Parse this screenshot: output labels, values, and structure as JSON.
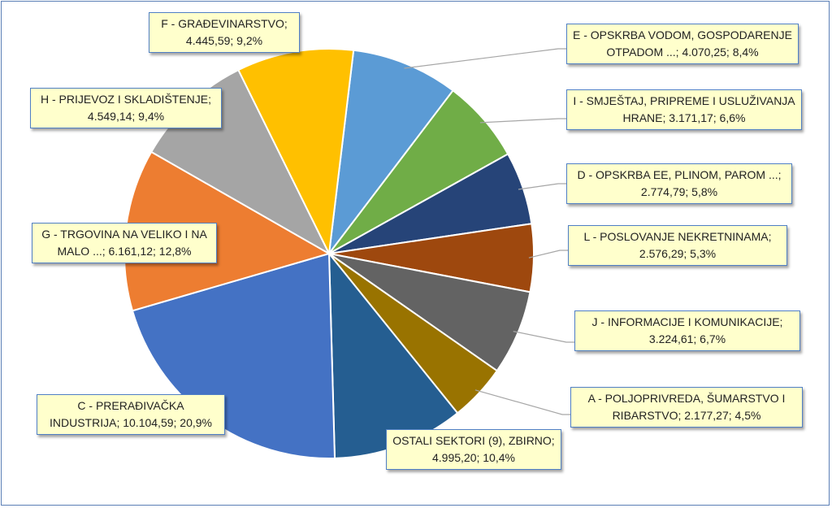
{
  "chart_data": {
    "type": "pie",
    "title": "",
    "slices": [
      {
        "name": "E - OPSKRBA VODOM, GOSPODARENJE OTPADOM ...",
        "value": 4070.25,
        "percent": 8.4,
        "color": "#5b9bd5",
        "label": "E - OPSKRBA VODOM, GOSPODARENJE OTPADOM ...; 4.070,25; 8,4%"
      },
      {
        "name": "I - SMJEŠTAJ, PRIPREME I USLUŽIVANJA HRANE",
        "value": 3171.17,
        "percent": 6.6,
        "color": "#70ad47",
        "label": "I - SMJEŠTAJ, PRIPREME I USLUŽIVANJA HRANE; 3.171,17; 6,6%"
      },
      {
        "name": "D - OPSKRBA EE, PLINOM, PAROM ...",
        "value": 2774.79,
        "percent": 5.8,
        "color": "#264478",
        "label": "D - OPSKRBA EE, PLINOM, PAROM ...; 2.774,79; 5,8%"
      },
      {
        "name": "L - POSLOVANJE NEKRETNINAMA",
        "value": 2576.29,
        "percent": 5.3,
        "color": "#9e480e",
        "label": "L - POSLOVANJE NEKRETNINAMA; 2.576,29; 5,3%"
      },
      {
        "name": "J - INFORMACIJE I KOMUNIKACIJE",
        "value": 3224.61,
        "percent": 6.7,
        "color": "#636363",
        "label": "J - INFORMACIJE I KOMUNIKACIJE; 3.224,61; 6,7%"
      },
      {
        "name": "A - POLJOPRIVREDA, ŠUMARSTVO I RIBARSTVO",
        "value": 2177.27,
        "percent": 4.5,
        "color": "#997300",
        "label": "A - POLJOPRIVREDA, ŠUMARSTVO I RIBARSTVO; 2.177,27; 4,5%"
      },
      {
        "name": "OSTALI SEKTORI (9), ZBIRNO",
        "value": 4995.2,
        "percent": 10.4,
        "color": "#255e91",
        "label": "OSTALI SEKTORI (9), ZBIRNO; 4.995,20; 10,4%"
      },
      {
        "name": "C - PRERAĐIVAČKA INDUSTRIJA",
        "value": 10104.59,
        "percent": 20.9,
        "color": "#4472c4",
        "label": "C - PRERAĐIVAČKA INDUSTRIJA; 10.104,59; 20,9%"
      },
      {
        "name": "G - TRGOVINA NA VELIKO I NA MALO ...",
        "value": 6161.12,
        "percent": 12.8,
        "color": "#ed7d31",
        "label": "G - TRGOVINA NA VELIKO I NA MALO ...; 6.161,12; 12,8%"
      },
      {
        "name": "H - PRIJEVOZ I SKLADIŠTENJE",
        "value": 4549.14,
        "percent": 9.4,
        "color": "#a5a5a5",
        "label": "H - PRIJEVOZ I SKLADIŠTENJE; 4.549,14; 9,4%"
      },
      {
        "name": "F - GRAĐEVINARSTVO",
        "value": 4445.59,
        "percent": 9.2,
        "color": "#ffc000",
        "label": "F - GRAĐEVINARSTVO; 4.445,59; 9,2%"
      }
    ],
    "data_labels": {
      "E": {
        "line1": "E - OPSKRBA VODOM, GOSPODARENJE",
        "line2": "OTPADOM ...; 4.070,25; 8,4%"
      },
      "I": {
        "line1": "I - SMJEŠTAJ, PRIPREME I USLUŽIVANJA",
        "line2": "HRANE; 3.171,17; 6,6%"
      },
      "D": {
        "line1": "D - OPSKRBA EE, PLINOM, PAROM ...;",
        "line2": "2.774,79; 5,8%"
      },
      "L": {
        "line1": "L - POSLOVANJE NEKRETNINAMA;",
        "line2": "2.576,29; 5,3%"
      },
      "J": {
        "line1": "J - INFORMACIJE I KOMUNIKACIJE;",
        "line2": "3.224,61; 6,7%"
      },
      "A": {
        "line1": "A - POLJOPRIVREDA, ŠUMARSTVO I",
        "line2": "RIBARSTVO; 2.177,27; 4,5%"
      },
      "O": {
        "line1": "OSTALI SEKTORI (9), ZBIRNO;",
        "line2": "4.995,20; 10,4%"
      },
      "C": {
        "line1": "C - PRERAĐIVAČKA",
        "line2": "INDUSTRIJA; 10.104,59; 20,9%"
      },
      "G": {
        "line1": "G - TRGOVINA NA VELIKO I NA",
        "line2": "MALO ...; 6.161,12; 12,8%"
      },
      "H": {
        "line1": "H - PRIJEVOZ I SKLADIŠTENJE;",
        "line2": "4.549,14; 9,4%"
      },
      "F": {
        "line1": "F - GRAĐEVINARSTVO;",
        "line2": "4.445,59; 9,2%"
      }
    }
  }
}
